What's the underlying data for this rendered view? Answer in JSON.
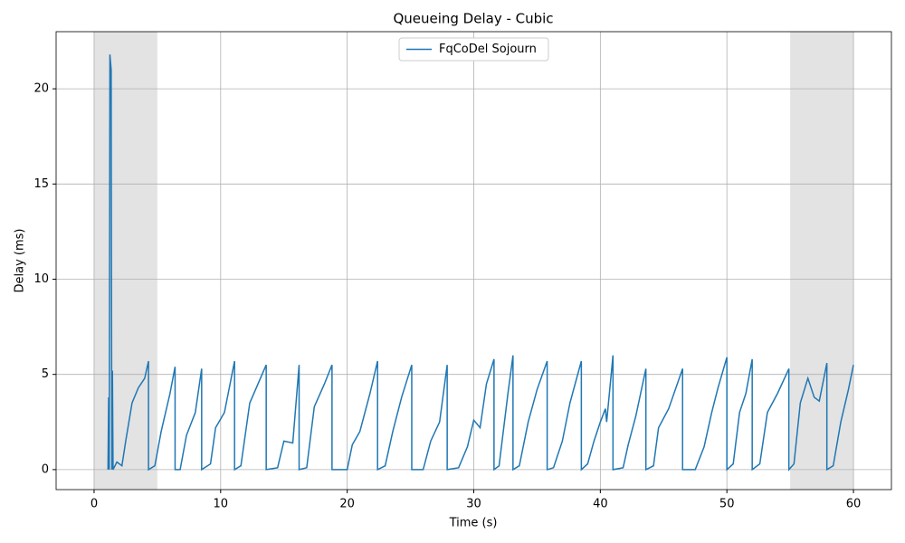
{
  "chart_data": {
    "type": "line",
    "title": "Queueing Delay - Cubic",
    "x_label": "Time (s)",
    "y_label": "Delay (ms)",
    "x": [
      1.1,
      1.15,
      1.2,
      1.25,
      1.35,
      1.4,
      1.45,
      1.5,
      1.8,
      2.2,
      2.5,
      3.0,
      3.5,
      4.0,
      4.3,
      4.3,
      4.8,
      5.3,
      6.0,
      6.4,
      6.4,
      6.8,
      7.3,
      8.0,
      8.5,
      8.5,
      9.2,
      9.6,
      10.3,
      11.1,
      11.1,
      11.6,
      12.3,
      13.6,
      13.6,
      14.5,
      15.0,
      15.7,
      16.2,
      16.2,
      16.8,
      17.4,
      18.2,
      18.8,
      18.8,
      20.0,
      20.4,
      21.0,
      21.8,
      22.4,
      22.4,
      23.0,
      23.6,
      24.3,
      25.1,
      25.1,
      26.0,
      26.6,
      27.3,
      27.9,
      27.9,
      28.8,
      29.5,
      30.0,
      30.5,
      31.0,
      31.6,
      31.6,
      32.0,
      32.7,
      33.1,
      33.1,
      33.6,
      34.3,
      35.0,
      35.8,
      35.8,
      36.3,
      37.0,
      37.6,
      38.5,
      38.5,
      39.0,
      39.5,
      40.0,
      40.4,
      40.5,
      41.0,
      41.0,
      41.8,
      42.2,
      42.8,
      43.6,
      43.6,
      44.2,
      44.6,
      45.4,
      46.5,
      46.5,
      47.5,
      48.2,
      48.8,
      49.3,
      50.0,
      50.0,
      50.5,
      51.0,
      51.5,
      52.0,
      52.0,
      52.6,
      53.2,
      54.0,
      54.9,
      54.9,
      55.3,
      55.8,
      56.4,
      56.9,
      57.3,
      57.9,
      57.9,
      58.4,
      59.0,
      59.6,
      60.0
    ],
    "series": [
      {
        "name": "FqCoDel Sojourn",
        "color": "#1f77b4",
        "values": [
          0,
          3.8,
          0,
          21.8,
          21.0,
          0,
          5.2,
          0,
          0.4,
          0.2,
          1.5,
          3.5,
          4.3,
          4.8,
          5.7,
          0,
          0.2,
          2.0,
          4.0,
          5.4,
          0,
          0,
          1.8,
          3.0,
          5.3,
          0,
          0.3,
          2.2,
          3.0,
          5.7,
          0,
          0.2,
          3.5,
          5.5,
          0,
          0.1,
          1.5,
          1.4,
          5.5,
          0,
          0.1,
          3.3,
          4.5,
          5.5,
          0,
          0,
          1.3,
          2.0,
          4.0,
          5.7,
          0,
          0.2,
          2.0,
          3.8,
          5.5,
          0,
          0,
          1.5,
          2.5,
          5.5,
          0,
          0.1,
          1.2,
          2.6,
          2.2,
          4.5,
          5.8,
          0,
          0.2,
          4.0,
          6.0,
          0,
          0.2,
          2.5,
          4.2,
          5.7,
          0,
          0.1,
          1.5,
          3.5,
          5.7,
          0,
          0.3,
          1.5,
          2.5,
          3.2,
          2.5,
          6.0,
          0,
          0.1,
          1.3,
          2.8,
          5.3,
          0,
          0.2,
          2.2,
          3.2,
          5.3,
          0,
          0,
          1.2,
          3.0,
          4.3,
          5.9,
          0,
          0.3,
          3.0,
          4.0,
          5.8,
          0,
          0.3,
          3.0,
          4.0,
          5.3,
          0,
          0.3,
          3.5,
          4.8,
          3.8,
          3.6,
          5.6,
          0,
          0.2,
          2.5,
          4.2,
          5.5
        ]
      }
    ],
    "xlim": [
      -3,
      63
    ],
    "ylim": [
      -1.05,
      23
    ],
    "xticks": [
      0,
      10,
      20,
      30,
      40,
      50,
      60
    ],
    "yticks": [
      0,
      5,
      10,
      15,
      20
    ],
    "shaded_spans": [
      [
        0,
        5
      ],
      [
        55,
        60
      ]
    ],
    "shade_color": "#e3e3e3",
    "grid": true,
    "legend": "upper center"
  }
}
